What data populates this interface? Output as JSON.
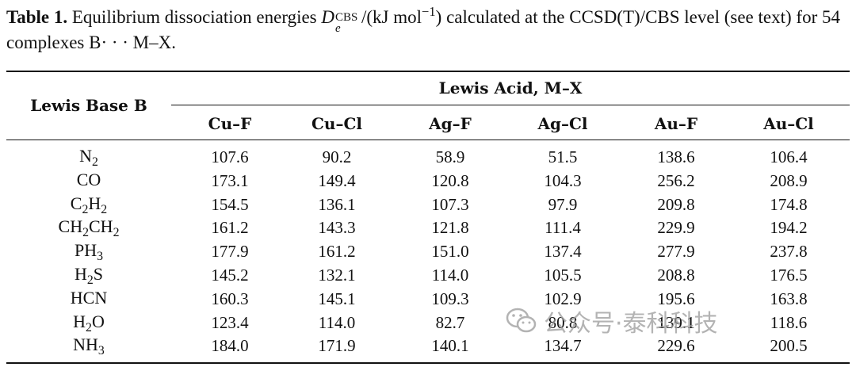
{
  "caption": {
    "label": "Table 1.",
    "text_before": "Equilibrium dissociation energies",
    "symbol": "D",
    "symbol_sub": "e",
    "symbol_sup": "CBS",
    "unit": "/(kJ mol",
    "unit_exp": "−1",
    "unit_end": ")",
    "text_after": "calculated at the CCSD(T)/CBS level (see text) for 54 complexes B· · · M–X."
  },
  "header": {
    "row_label": "Lewis Base B",
    "group_label": "Lewis Acid, M–X",
    "columns": [
      "Cu–F",
      "Cu–Cl",
      "Ag–F",
      "Ag–Cl",
      "Au–F",
      "Au–Cl"
    ]
  },
  "rows": [
    {
      "base": "N",
      "base_sub": "2",
      "base_tail": "",
      "base_sub2": "",
      "values": [
        "107.6",
        "90.2",
        "58.9",
        "51.5",
        "138.6",
        "106.4"
      ]
    },
    {
      "base": "CO",
      "base_sub": "",
      "base_tail": "",
      "base_sub2": "",
      "values": [
        "173.1",
        "149.4",
        "120.8",
        "104.3",
        "256.2",
        "208.9"
      ]
    },
    {
      "base": "C",
      "base_sub": "2",
      "base_tail": "H",
      "base_sub2": "2",
      "values": [
        "154.5",
        "136.1",
        "107.3",
        "97.9",
        "209.8",
        "174.8"
      ]
    },
    {
      "base": "CH",
      "base_sub": "2",
      "base_tail": "CH",
      "base_sub2": "2",
      "values": [
        "161.2",
        "143.3",
        "121.8",
        "111.4",
        "229.9",
        "194.2"
      ]
    },
    {
      "base": "PH",
      "base_sub": "3",
      "base_tail": "",
      "base_sub2": "",
      "values": [
        "177.9",
        "161.2",
        "151.0",
        "137.4",
        "277.9",
        "237.8"
      ]
    },
    {
      "base": "H",
      "base_sub": "2",
      "base_tail": "S",
      "base_sub2": "",
      "values": [
        "145.2",
        "132.1",
        "114.0",
        "105.5",
        "208.8",
        "176.5"
      ]
    },
    {
      "base": "HCN",
      "base_sub": "",
      "base_tail": "",
      "base_sub2": "",
      "values": [
        "160.3",
        "145.1",
        "109.3",
        "102.9",
        "195.6",
        "163.8"
      ]
    },
    {
      "base": "H",
      "base_sub": "2",
      "base_tail": "O",
      "base_sub2": "",
      "values": [
        "123.4",
        "114.0",
        "82.7",
        "80.8",
        "139.1",
        "118.6"
      ]
    },
    {
      "base": "NH",
      "base_sub": "3",
      "base_tail": "",
      "base_sub2": "",
      "values": [
        "184.0",
        "171.9",
        "140.1",
        "134.7",
        "229.6",
        "200.5"
      ]
    }
  ],
  "watermark": {
    "text": "公众号·泰科科技",
    "icon": "wechat-icon"
  }
}
